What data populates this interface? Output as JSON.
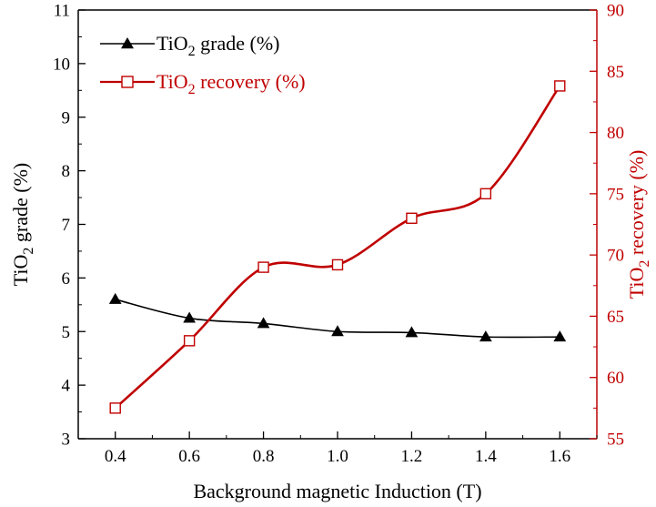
{
  "chart_data": {
    "type": "line",
    "x": [
      0.4,
      0.6,
      0.8,
      1.0,
      1.2,
      1.4,
      1.6
    ],
    "x_tick_labels": [
      "0.4",
      "0.6",
      "0.8",
      "1.0",
      "1.2",
      "1.4",
      "1.6"
    ],
    "xlabel": "Background magnetic Induction (T)",
    "xlim": [
      0.3,
      1.7
    ],
    "ylabel_left": {
      "prefix": "TiO",
      "sub": "2",
      "suffix": " grade (%)"
    },
    "ylabel_right": {
      "prefix": "TiO",
      "sub": "2",
      "suffix": " recovery (%)"
    },
    "ylim_left": [
      3,
      11
    ],
    "ylim_right": [
      55,
      90
    ],
    "y_left_ticks": [
      3,
      4,
      5,
      6,
      7,
      8,
      9,
      10,
      11
    ],
    "y_left_tick_labels": [
      "3",
      "4",
      "5",
      "6",
      "7",
      "8",
      "9",
      "10",
      "11"
    ],
    "y_right_ticks": [
      55,
      60,
      65,
      70,
      75,
      80,
      85,
      90
    ],
    "y_right_tick_labels": [
      "55",
      "60",
      "65",
      "70",
      "75",
      "80",
      "85",
      "90"
    ],
    "grid": false,
    "legend_position": "top-left",
    "series": [
      {
        "name": {
          "prefix": "TiO",
          "sub": "2",
          "suffix": " grade (%)"
        },
        "axis": "left",
        "marker": "filled-triangle",
        "color": "#000000",
        "values": [
          5.6,
          5.25,
          5.15,
          5.0,
          4.98,
          4.9,
          4.9
        ]
      },
      {
        "name": {
          "prefix": "TiO",
          "sub": "2",
          "suffix": " recovery (%)"
        },
        "axis": "right",
        "marker": "open-square",
        "color": "#c00000",
        "values": [
          57.5,
          63,
          69,
          69.2,
          73,
          75,
          83.8
        ]
      }
    ],
    "colors": {
      "right_axis": "#c00000",
      "left_axis": "#000000"
    }
  }
}
